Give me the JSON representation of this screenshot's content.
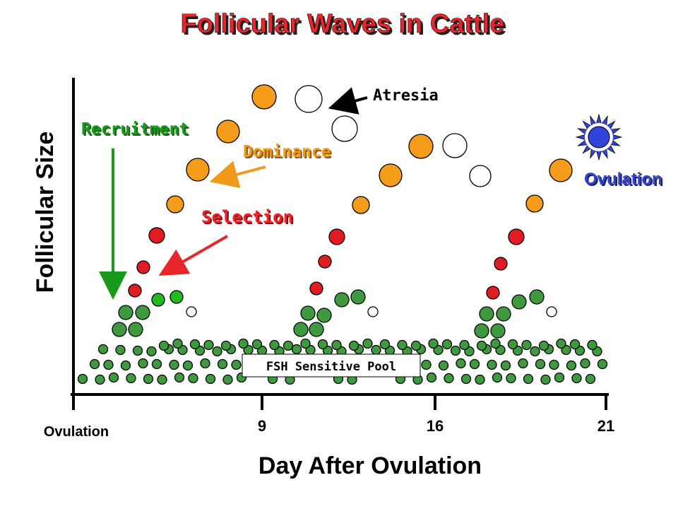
{
  "title": "Follicular Waves in Cattle",
  "y_axis_label": "Follicular Size",
  "x_axis_label": "Day After Ovulation",
  "x_ticks": [
    "Ovulation",
    "9",
    "16",
    "21"
  ],
  "labels": {
    "recruitment": "Recruitment",
    "dominance": "Dominance",
    "selection": "Selection",
    "atresia": "Atresia",
    "ovulation": "Ovulation",
    "pool": "FSH Sensitive Pool"
  },
  "colors": {
    "title": "#e8262b",
    "recruitment": "#1a9a1a",
    "dominance": "#f29a18",
    "selection": "#e8262b",
    "ovulation": "#3344cc",
    "follicle_green": "#3f9a3f",
    "follicle_bright_green": "#22bb22",
    "follicle_red": "#e01c22",
    "follicle_orange": "#f59d1a",
    "follicle_white": "#ffffff",
    "ovulation_star": "#3344dd"
  }
}
